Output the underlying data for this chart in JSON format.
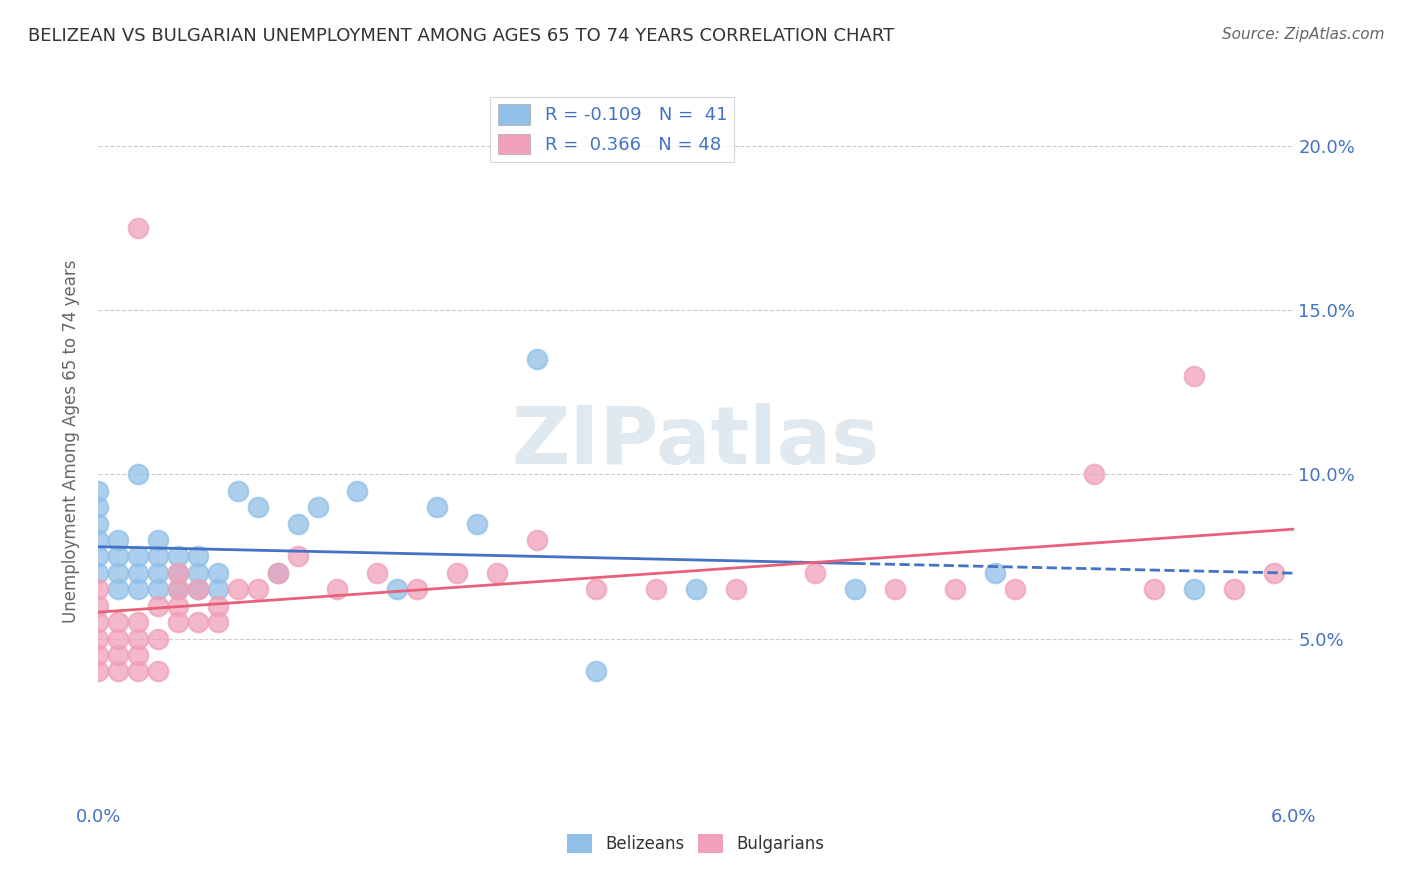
{
  "title": "BELIZEAN VS BULGARIAN UNEMPLOYMENT AMONG AGES 65 TO 74 YEARS CORRELATION CHART",
  "source": "Source: ZipAtlas.com",
  "ylabel_left": "Unemployment Among Ages 65 to 74 years",
  "xlim": [
    0.0,
    0.06
  ],
  "ylim": [
    0.0,
    0.22
  ],
  "x_tick_positions": [
    0.0,
    0.01,
    0.02,
    0.03,
    0.04,
    0.05,
    0.06
  ],
  "x_tick_labels": [
    "0.0%",
    "",
    "",
    "",
    "",
    "",
    "6.0%"
  ],
  "y_ticks_right": [
    0.05,
    0.1,
    0.15,
    0.2
  ],
  "y_tick_labels_right": [
    "5.0%",
    "10.0%",
    "15.0%",
    "20.0%"
  ],
  "watermark": "ZIPatlas",
  "belizean_color": "#90C0E8",
  "bulgarian_color": "#F0A0B8",
  "belizean_line_color": "#4472C4",
  "bulgarian_line_color": "#E8607A",
  "R_belizean": -0.109,
  "N_belizean": 41,
  "R_bulgarian": 0.366,
  "N_bulgarian": 48,
  "belizean_x": [
    0.0,
    0.0,
    0.0,
    0.0,
    0.0,
    0.0,
    0.001,
    0.001,
    0.001,
    0.001,
    0.002,
    0.002,
    0.002,
    0.002,
    0.003,
    0.003,
    0.003,
    0.003,
    0.004,
    0.004,
    0.004,
    0.005,
    0.005,
    0.005,
    0.006,
    0.006,
    0.007,
    0.008,
    0.009,
    0.01,
    0.011,
    0.013,
    0.015,
    0.017,
    0.019,
    0.022,
    0.025,
    0.03,
    0.038,
    0.045,
    0.055
  ],
  "belizean_y": [
    0.07,
    0.075,
    0.08,
    0.085,
    0.09,
    0.095,
    0.065,
    0.07,
    0.075,
    0.08,
    0.065,
    0.07,
    0.075,
    0.1,
    0.065,
    0.07,
    0.075,
    0.08,
    0.065,
    0.07,
    0.075,
    0.065,
    0.07,
    0.075,
    0.065,
    0.07,
    0.095,
    0.09,
    0.07,
    0.085,
    0.09,
    0.095,
    0.065,
    0.09,
    0.085,
    0.135,
    0.04,
    0.065,
    0.065,
    0.07,
    0.065
  ],
  "bulgarian_x": [
    0.0,
    0.0,
    0.0,
    0.0,
    0.0,
    0.0,
    0.001,
    0.001,
    0.001,
    0.001,
    0.002,
    0.002,
    0.002,
    0.002,
    0.002,
    0.003,
    0.003,
    0.003,
    0.004,
    0.004,
    0.004,
    0.004,
    0.005,
    0.005,
    0.006,
    0.006,
    0.007,
    0.008,
    0.009,
    0.01,
    0.012,
    0.014,
    0.016,
    0.018,
    0.02,
    0.022,
    0.025,
    0.028,
    0.032,
    0.036,
    0.04,
    0.043,
    0.046,
    0.05,
    0.053,
    0.055,
    0.057,
    0.059
  ],
  "bulgarian_y": [
    0.04,
    0.045,
    0.05,
    0.055,
    0.06,
    0.065,
    0.04,
    0.045,
    0.05,
    0.055,
    0.04,
    0.045,
    0.05,
    0.055,
    0.175,
    0.04,
    0.05,
    0.06,
    0.055,
    0.06,
    0.065,
    0.07,
    0.055,
    0.065,
    0.055,
    0.06,
    0.065,
    0.065,
    0.07,
    0.075,
    0.065,
    0.07,
    0.065,
    0.07,
    0.07,
    0.08,
    0.065,
    0.065,
    0.065,
    0.07,
    0.065,
    0.065,
    0.065,
    0.1,
    0.065,
    0.13,
    0.065,
    0.07
  ],
  "background_color": "#FFFFFF",
  "grid_color": "#CCCCCC",
  "title_color": "#333333",
  "source_color": "#666666",
  "axis_label_color": "#666666",
  "tick_label_color": "#4472C4",
  "watermark_color": "#E0E8F0",
  "legend_belizean_label": "R = -0.109   N =  41",
  "legend_bulgarian_label": "R =  0.366   N = 48"
}
